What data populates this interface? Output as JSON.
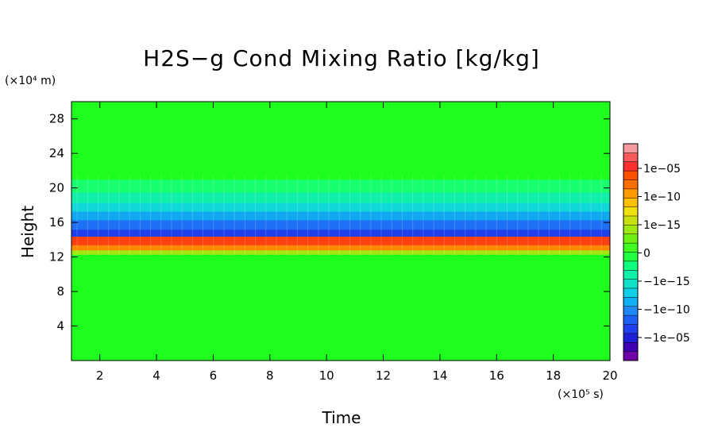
{
  "chart_data": {
    "type": "heatmap",
    "title": "H2S−g Cond Mixing Ratio [kg/kg]",
    "xlabel": "Time",
    "ylabel": "Height",
    "x_unit": "(×10⁵ s)",
    "y_unit": "(×10⁴ m)",
    "xlim": [
      1,
      20
    ],
    "ylim": [
      0,
      30
    ],
    "xticks": [
      2,
      4,
      6,
      8,
      10,
      12,
      14,
      16,
      18,
      20
    ],
    "yticks": [
      4,
      8,
      12,
      16,
      20,
      24,
      28
    ],
    "grid": false,
    "colorbar": {
      "labels": [
        "1e−05",
        "1e−10",
        "1e−15",
        "0",
        "−1e−15",
        "−1e−10",
        "−1e−05"
      ],
      "colors": [
        "#7000a8",
        "#3e00b0",
        "#1f1fd8",
        "#1f40f0",
        "#1f5ff5",
        "#1e88f5",
        "#0fb0f5",
        "#10d0e8",
        "#10e0c8",
        "#10f0a8",
        "#10ff80",
        "#20ff40",
        "#40ff20",
        "#70f010",
        "#a0e810",
        "#c8e010",
        "#f0e010",
        "#ffc000",
        "#ff9a00",
        "#ff7000",
        "#ff5000",
        "#ff3030",
        "#f85a5a",
        "#f59aa0"
      ]
    },
    "bands": [
      {
        "from": 0,
        "to": 12.3,
        "value": "0",
        "color": "#1eff1e"
      },
      {
        "from": 12.3,
        "to": 12.8,
        "value": "1e−15",
        "color": "#a0e810"
      },
      {
        "from": 12.8,
        "to": 13.4,
        "value": "1e−10",
        "color": "#ff8a00"
      },
      {
        "from": 13.4,
        "to": 14.4,
        "value": "1e−05",
        "color": "#ff4010"
      },
      {
        "from": 14.4,
        "to": 15.2,
        "value": "−1e−05",
        "color": "#1f3fe8"
      },
      {
        "from": 15.2,
        "to": 16.3,
        "value": "−1e−10",
        "color": "#1e70f5"
      },
      {
        "from": 16.3,
        "to": 17.3,
        "value": "−1e−12",
        "color": "#10a8f0"
      },
      {
        "from": 17.3,
        "to": 18.3,
        "value": "−1e−14",
        "color": "#10d8d8"
      },
      {
        "from": 18.3,
        "to": 19.5,
        "value": "−1e−15",
        "color": "#10f0a8"
      },
      {
        "from": 19.5,
        "to": 21.0,
        "value": "−1e−16",
        "color": "#18ff70"
      },
      {
        "from": 21.0,
        "to": 30,
        "value": "0",
        "color": "#1eff1e"
      }
    ]
  }
}
